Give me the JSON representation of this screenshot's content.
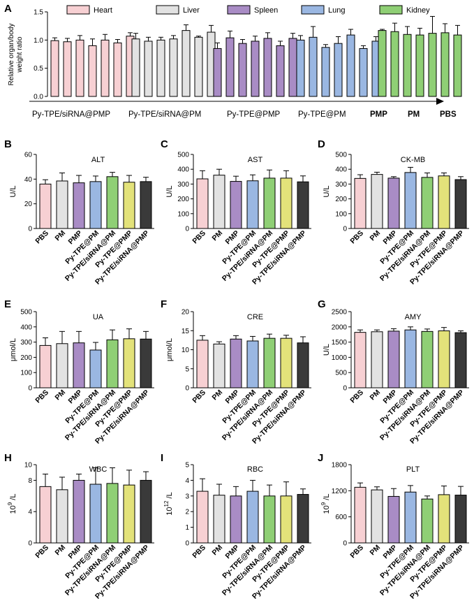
{
  "colors": {
    "PBS": "#f7d0d3",
    "PM": "#e2e2e2",
    "PMP": "#a98cc5",
    "PyPM": "#9ab7e2",
    "PySiPM": "#8fcf75",
    "PyPMP": "#e3e27a",
    "PySiPMP": "#3a3a3a",
    "Heart": "#f7d0d3",
    "Liver": "#e2e2e2",
    "Spleen": "#a98cc5",
    "Lung": "#9ab7e2",
    "Kidney": "#8fcf75"
  },
  "panel_a": {
    "letter": "A",
    "ylabel_line1": "Relative organ/body",
    "ylabel_line2": "weight ratio",
    "arrow_left_label": "Py-TPE/siRNA@PMP",
    "arrow_right_label": "PBS",
    "chart_data": {
      "type": "bar",
      "title": "",
      "ylabel": "Relative organ/body weight ratio",
      "ylim": [
        0,
        1.5
      ],
      "yticks": [
        "0.0",
        "0.5",
        "1.0",
        "1.5"
      ],
      "legend": [
        "Heart",
        "Liver",
        "Spleen",
        "Lung",
        "Kidney"
      ],
      "group_labels": [
        "Py-TPE/siRNA@PMP",
        "Py-TPE/siRNA@PM",
        "Py-TPE@PMP",
        "Py-TPE@PM",
        "PMP",
        "PM",
        "PBS"
      ],
      "series": [
        {
          "name": "Heart",
          "values": [
            0.99,
            0.97,
            1.0,
            0.9,
            1.0,
            0.95,
            1.07
          ],
          "errors": [
            0.05,
            0.06,
            0.08,
            0.12,
            0.1,
            0.06,
            0.06
          ]
        },
        {
          "name": "Liver",
          "values": [
            1.02,
            0.98,
            1.0,
            1.02,
            1.17,
            1.05,
            1.14
          ],
          "errors": [
            0.1,
            0.07,
            0.05,
            0.06,
            0.1,
            0.02,
            0.12
          ]
        },
        {
          "name": "Spleen",
          "values": [
            0.85,
            1.04,
            0.94,
            0.98,
            1.03,
            0.9,
            1.03
          ],
          "errors": [
            0.1,
            0.12,
            0.07,
            0.09,
            0.1,
            0.08,
            0.09
          ]
        },
        {
          "name": "Lung",
          "values": [
            1.0,
            1.05,
            0.87,
            0.94,
            1.09,
            0.85,
            0.98
          ],
          "errors": [
            0.08,
            0.19,
            0.05,
            0.12,
            0.1,
            0.05,
            0.08
          ]
        },
        {
          "name": "Kidney",
          "values": [
            1.17,
            1.15,
            1.1,
            1.09,
            1.12,
            1.13,
            1.09
          ],
          "errors": [
            0.02,
            0.15,
            0.14,
            0.12,
            0.3,
            0.16,
            0.17
          ]
        }
      ]
    }
  },
  "small_panels": [
    {
      "letter": "B",
      "title": "ALT",
      "ylabel": "U/L",
      "ylabel_sup": "",
      "ylim": [
        0,
        60
      ],
      "yticks": [
        "0",
        "20",
        "40",
        "60"
      ],
      "chart_data": {
        "type": "bar",
        "title": "ALT",
        "ylabel": "U/L",
        "ylim": [
          0,
          60
        ],
        "categories": [
          "PBS",
          "PM",
          "PMP",
          "Py-TPE@PM",
          "Py-TPE/siRNA@PM",
          "Py-TPE@PMP",
          "Py-TPE/siRNA@PMP"
        ],
        "values": [
          36,
          38.5,
          37,
          38,
          42,
          37.5,
          38
        ],
        "errors": [
          3.5,
          6.5,
          6,
          4.5,
          3.5,
          5.5,
          3.5
        ]
      }
    },
    {
      "letter": "C",
      "title": "AST",
      "ylabel": "U/L",
      "ylabel_sup": "",
      "ylim": [
        0,
        500
      ],
      "yticks": [
        "0",
        "100",
        "200",
        "300",
        "400",
        "500"
      ],
      "chart_data": {
        "type": "bar",
        "title": "AST",
        "ylabel": "U/L",
        "ylim": [
          0,
          500
        ],
        "categories": [
          "PBS",
          "PM",
          "PMP",
          "Py-TPE@PM",
          "Py-TPE/siRNA@PM",
          "Py-TPE@PMP",
          "Py-TPE/siRNA@PMP"
        ],
        "values": [
          335,
          360,
          318,
          322,
          340,
          340,
          315
        ],
        "errors": [
          55,
          40,
          35,
          40,
          55,
          50,
          40
        ]
      }
    },
    {
      "letter": "D",
      "title": "CK-MB",
      "ylabel": "U/L",
      "ylabel_sup": "",
      "ylim": [
        0,
        500
      ],
      "yticks": [
        "0",
        "100",
        "200",
        "300",
        "400",
        "500"
      ],
      "chart_data": {
        "type": "bar",
        "title": "CK-MB",
        "ylabel": "U/L",
        "ylim": [
          0,
          500
        ],
        "categories": [
          "PBS",
          "PM",
          "PMP",
          "Py-TPE@PM",
          "Py-TPE/siRNA@PM",
          "Py-TPE@PMP",
          "Py-TPE/siRNA@PMP"
        ],
        "values": [
          338,
          365,
          340,
          378,
          345,
          355,
          330
        ],
        "errors": [
          25,
          15,
          10,
          35,
          30,
          20,
          20
        ]
      }
    },
    {
      "letter": "E",
      "title": "UA",
      "ylabel": "μmol/L",
      "ylabel_sup": "",
      "ylim": [
        0,
        500
      ],
      "yticks": [
        "0",
        "100",
        "200",
        "300",
        "400",
        "500"
      ],
      "chart_data": {
        "type": "bar",
        "title": "UA",
        "ylabel": "μmol/L",
        "ylim": [
          0,
          500
        ],
        "categories": [
          "PBS",
          "PM",
          "PMP",
          "Py-TPE@PM",
          "Py-TPE/siRNA@PM",
          "Py-TPE@PMP",
          "Py-TPE/siRNA@PMP"
        ],
        "values": [
          278,
          290,
          295,
          248,
          315,
          322,
          320
        ],
        "errors": [
          50,
          80,
          75,
          50,
          65,
          65,
          50
        ]
      }
    },
    {
      "letter": "F",
      "title": "CRE",
      "ylabel": "μmol/L",
      "ylabel_sup": "",
      "ylim": [
        0,
        20
      ],
      "yticks": [
        "0",
        "5",
        "10",
        "15",
        "20"
      ],
      "chart_data": {
        "type": "bar",
        "title": "CRE",
        "ylabel": "μmol/L",
        "ylim": [
          0,
          20
        ],
        "categories": [
          "PBS",
          "PM",
          "PMP",
          "Py-TPE@PM",
          "Py-TPE/siRNA@PM",
          "Py-TPE@PMP",
          "Py-TPE/siRNA@PMP"
        ],
        "values": [
          12.5,
          11.5,
          12.8,
          12.3,
          13.0,
          13.0,
          11.8
        ],
        "errors": [
          1.2,
          0.6,
          0.9,
          1.2,
          1.1,
          0.8,
          1.6
        ]
      }
    },
    {
      "letter": "G",
      "title": "AMY",
      "ylabel": "U/L",
      "ylabel_sup": "",
      "ylim": [
        0,
        2500
      ],
      "yticks": [
        "0",
        "500",
        "1000",
        "1500",
        "2000",
        "2500"
      ],
      "chart_data": {
        "type": "bar",
        "title": "AMY",
        "ylabel": "U/L",
        "ylim": [
          0,
          2500
        ],
        "categories": [
          "PBS",
          "PM",
          "PMP",
          "Py-TPE@PM",
          "Py-TPE/siRNA@PM",
          "Py-TPE@PMP",
          "Py-TPE/siRNA@PMP"
        ],
        "values": [
          1820,
          1840,
          1860,
          1900,
          1850,
          1870,
          1810
        ],
        "errors": [
          80,
          60,
          80,
          100,
          80,
          110,
          60
        ]
      }
    },
    {
      "letter": "H",
      "title": "WBC",
      "ylabel": "/L",
      "ylabel_sup": "10",
      "ylabel_exp": "9",
      "ylim": [
        0,
        10
      ],
      "yticks": [
        "0",
        "4",
        "8",
        "10"
      ],
      "chart_data": {
        "type": "bar",
        "title": "WBC",
        "ylabel": "10^9 /L",
        "ylim": [
          0,
          10
        ],
        "categories": [
          "PBS",
          "PM",
          "PMP",
          "Py-TPE@PM",
          "Py-TPE/siRNA@PM",
          "Py-TPE@PMP",
          "Py-TPE/siRNA@PMP"
        ],
        "values": [
          7.2,
          6.8,
          8.0,
          7.5,
          7.6,
          7.4,
          8.0
        ],
        "errors": [
          1.6,
          1.6,
          0.8,
          2.1,
          2.0,
          1.9,
          1.1
        ]
      }
    },
    {
      "letter": "I",
      "title": "RBC",
      "ylabel": "/L",
      "ylabel_sup": "10",
      "ylabel_exp": "12",
      "ylim": [
        0,
        5
      ],
      "yticks": [
        "0",
        "1",
        "2",
        "3",
        "4",
        "5"
      ],
      "chart_data": {
        "type": "bar",
        "title": "RBC",
        "ylabel": "10^12 /L",
        "ylim": [
          0,
          5
        ],
        "categories": [
          "PBS",
          "PM",
          "PMP",
          "Py-TPE@PM",
          "Py-TPE/siRNA@PM",
          "Py-TPE@PMP",
          "Py-TPE/siRNA@PMP"
        ],
        "values": [
          3.3,
          3.05,
          3.0,
          3.3,
          3.0,
          3.0,
          3.1
        ],
        "errors": [
          0.8,
          0.7,
          0.6,
          0.7,
          0.7,
          0.9,
          0.35
        ]
      }
    },
    {
      "letter": "J",
      "title": "PLT",
      "ylabel": "/L",
      "ylabel_sup": "10",
      "ylabel_exp": "9",
      "ylim": [
        0,
        1800
      ],
      "yticks": [
        "0",
        "600",
        "1200",
        "1800"
      ],
      "chart_data": {
        "type": "bar",
        "title": "PLT",
        "ylabel": "10^9 /L",
        "ylim": [
          0,
          1800
        ],
        "categories": [
          "PBS",
          "PM",
          "PMP",
          "Py-TPE@PM",
          "Py-TPE/siRNA@PM",
          "Py-TPE@PMP",
          "Py-TPE/siRNA@PMP"
        ],
        "values": [
          1280,
          1220,
          1070,
          1170,
          1010,
          1110,
          1100
        ],
        "errors": [
          100,
          70,
          180,
          150,
          70,
          200,
          200
        ]
      }
    }
  ]
}
